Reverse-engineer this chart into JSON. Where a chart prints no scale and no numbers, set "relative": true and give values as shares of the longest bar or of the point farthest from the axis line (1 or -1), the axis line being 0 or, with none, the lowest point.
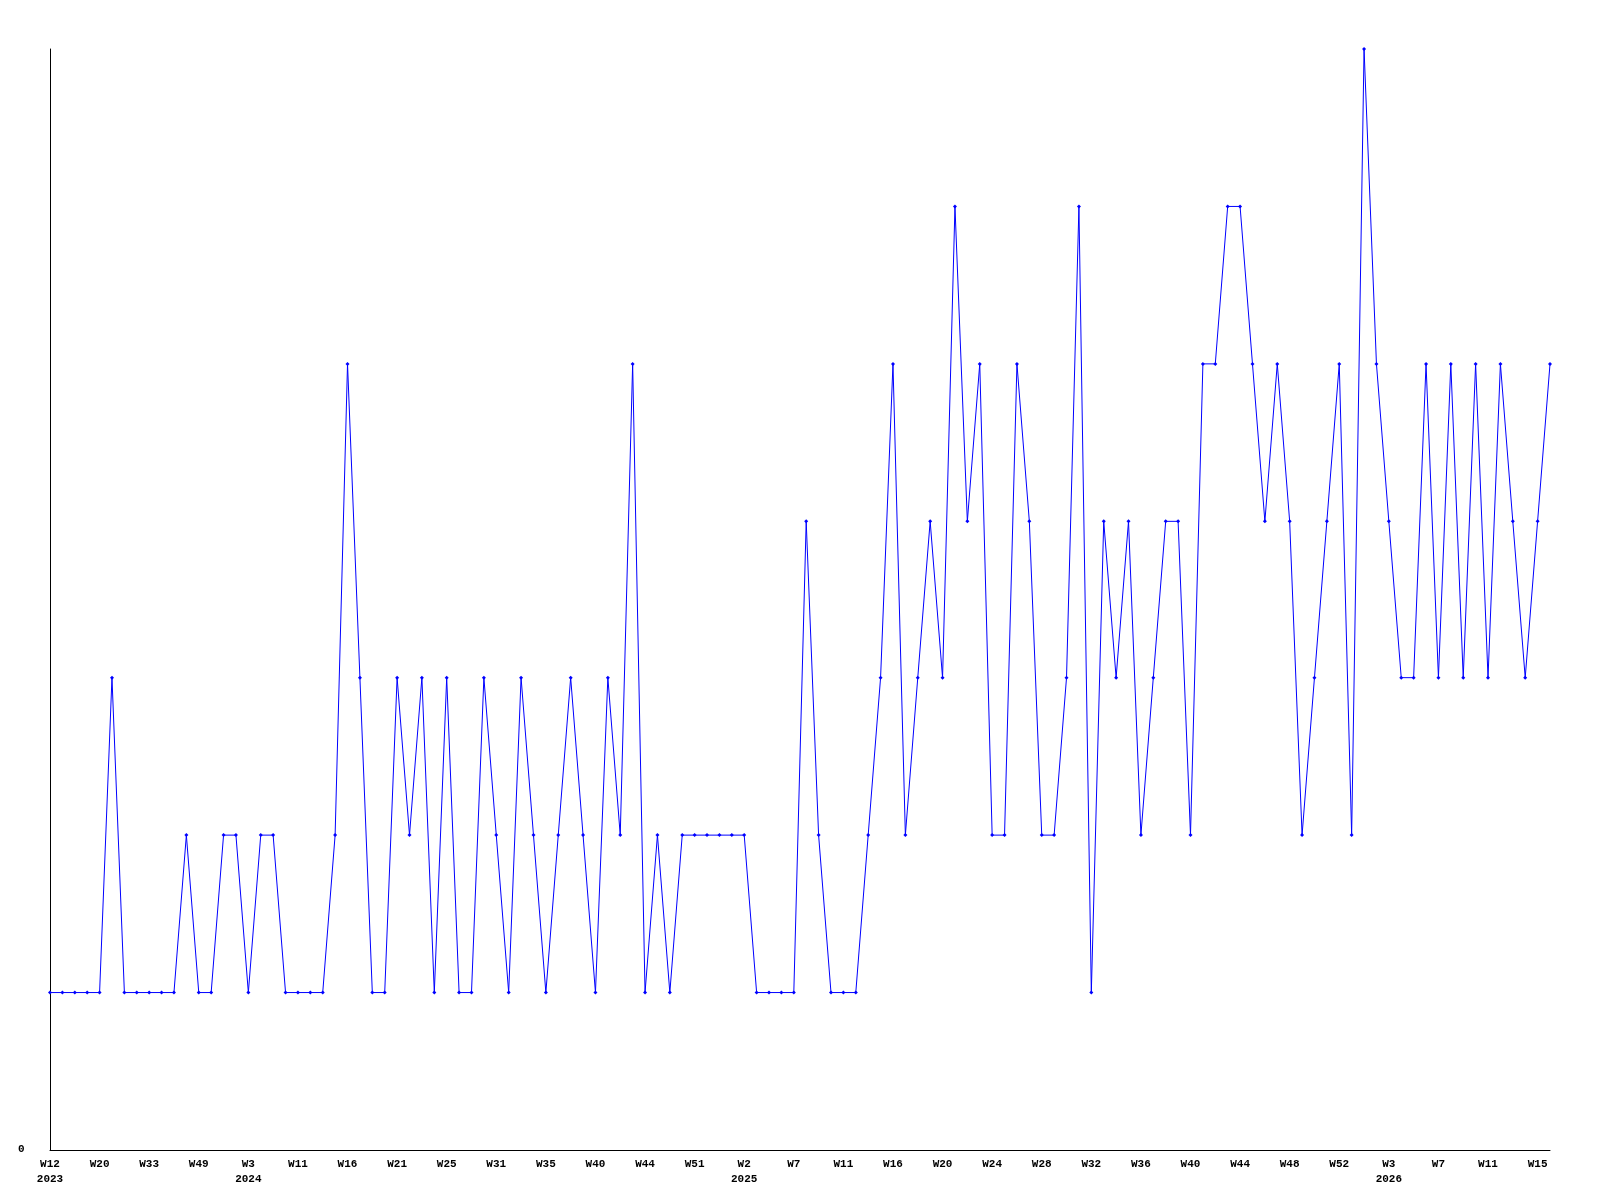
{
  "chart_data": {
    "type": "line",
    "relative": true,
    "marker": "diamond",
    "annotations": [
      "0"
    ],
    "categories": [
      "W12\n2023",
      null,
      null,
      null,
      "W20",
      null,
      null,
      null,
      "W33",
      null,
      null,
      null,
      "W49",
      null,
      null,
      null,
      "W3\n2024",
      null,
      null,
      null,
      "W11",
      null,
      null,
      null,
      "W16",
      null,
      null,
      null,
      "W21",
      null,
      null,
      null,
      "W25",
      null,
      null,
      null,
      "W31",
      null,
      null,
      null,
      "W35",
      null,
      null,
      null,
      "W40",
      null,
      null,
      null,
      "W44",
      null,
      null,
      null,
      "W51",
      null,
      null,
      null,
      "W2\n2025",
      null,
      null,
      null,
      "W7",
      null,
      null,
      null,
      "W11",
      null,
      null,
      null,
      "W16",
      null,
      null,
      null,
      "W20",
      null,
      null,
      null,
      "W24",
      null,
      null,
      null,
      "W28",
      null,
      null,
      null,
      "W32",
      null,
      null,
      null,
      "W36",
      null,
      null,
      null,
      "W40",
      null,
      null,
      null,
      "W44",
      null,
      null,
      null,
      "W48",
      null,
      null,
      null,
      "W52",
      null,
      null,
      null,
      "W3\n2026",
      null,
      null,
      null,
      "W7",
      null,
      null,
      null,
      "W11",
      null,
      null,
      null,
      "W15",
      null
    ],
    "series": [
      {
        "color": "#0000ff",
        "values": [
          0.143,
          0.143,
          0.143,
          0.143,
          0.143,
          0.429,
          0.143,
          0.143,
          0.143,
          0.143,
          0.143,
          0.286,
          0.143,
          0.143,
          0.286,
          0.286,
          0.143,
          0.286,
          0.286,
          0.143,
          0.143,
          0.143,
          0.143,
          0.286,
          0.714,
          0.429,
          0.143,
          0.143,
          0.429,
          0.286,
          0.429,
          0.143,
          0.429,
          0.143,
          0.143,
          0.429,
          0.286,
          0.143,
          0.429,
          0.286,
          0.143,
          0.286,
          0.429,
          0.286,
          0.143,
          0.429,
          0.286,
          0.714,
          0.143,
          0.286,
          0.143,
          0.286,
          0.286,
          0.286,
          0.286,
          0.286,
          0.286,
          0.143,
          0.143,
          0.143,
          0.143,
          0.571,
          0.286,
          0.143,
          0.143,
          0.143,
          0.286,
          0.429,
          0.714,
          0.286,
          0.429,
          0.571,
          0.429,
          0.857,
          0.571,
          0.714,
          0.286,
          0.286,
          0.714,
          0.571,
          0.286,
          0.286,
          0.429,
          0.857,
          0.143,
          0.571,
          0.429,
          0.571,
          0.286,
          0.429,
          0.571,
          0.571,
          0.286,
          0.714,
          0.714,
          0.857,
          0.857,
          0.714,
          0.571,
          0.714,
          0.571,
          0.286,
          0.429,
          0.571,
          0.714,
          0.286,
          1,
          0.714,
          0.571,
          0.429,
          0.429,
          0.714,
          0.429,
          0.714,
          0.429,
          0.714,
          0.429,
          0.714,
          0.571,
          0.429,
          0.571,
          0.714
        ]
      }
    ]
  }
}
